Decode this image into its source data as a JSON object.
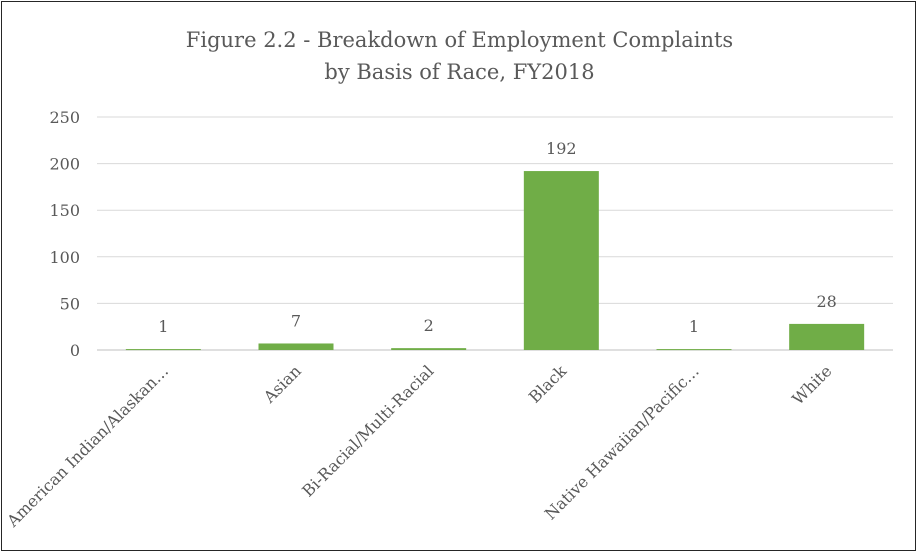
{
  "chart_data": {
    "type": "bar",
    "title": "Figure 2.2 - Breakdown of Employment Complaints",
    "subtitle": "by Basis of Race, FY2018",
    "categories": [
      "American Indian/Alaskan…",
      "Asian",
      "Bi-Racial/Multi-Racial",
      "Black",
      "Native Hawaiian/Pacific…",
      "White"
    ],
    "values": [
      1,
      7,
      2,
      192,
      1,
      28
    ],
    "ylim": [
      0,
      250
    ],
    "yticks": [
      0,
      50,
      100,
      150,
      200,
      250
    ],
    "grid": true,
    "bar_color": "#70ad47",
    "grid_color": "#d9d9d9",
    "text_color": "#595959",
    "data_labels": true
  }
}
